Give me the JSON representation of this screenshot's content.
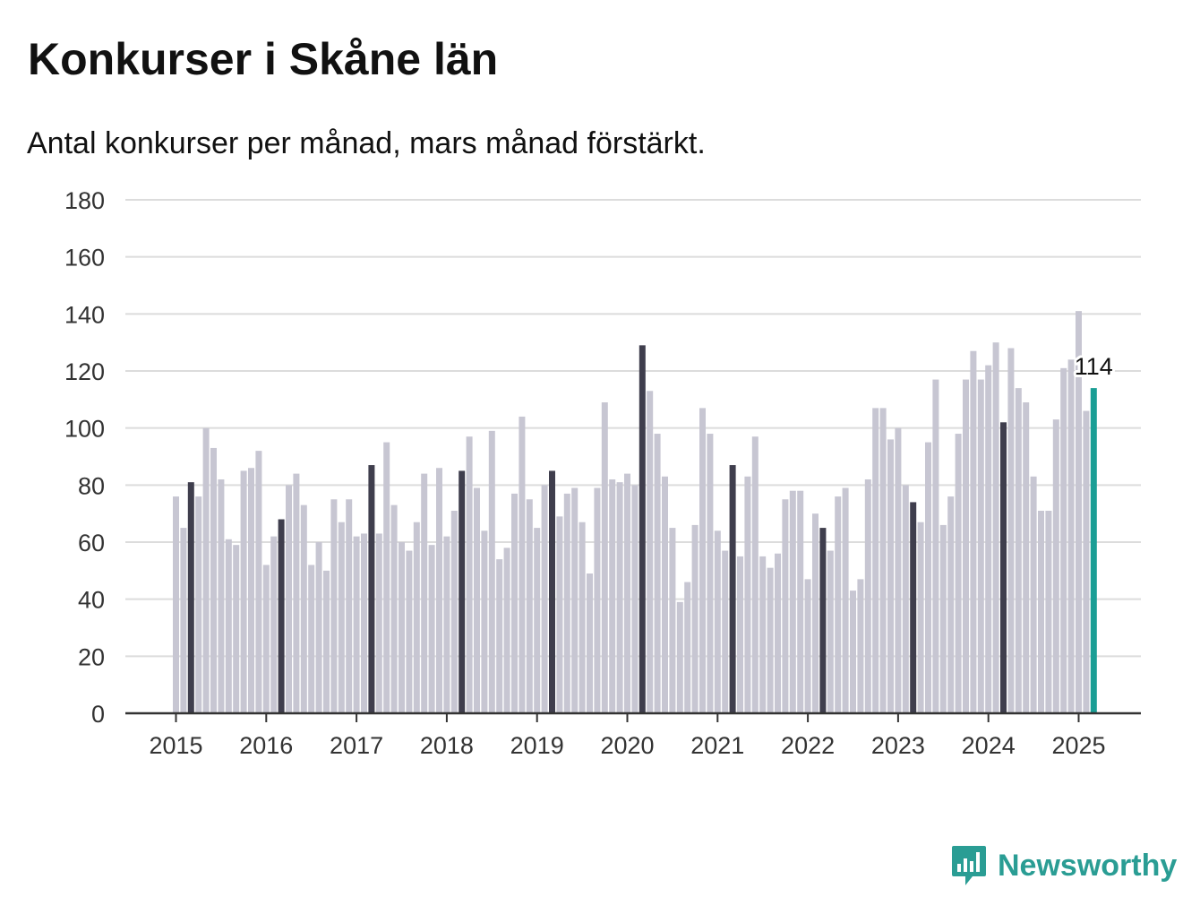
{
  "title": "Konkurser i Skåne län",
  "subtitle": "Antal konkurser per månad, mars månad förstärkt.",
  "brand": {
    "name": "Newsworthy",
    "icon": "speech-bubble-bar-chart-icon",
    "color": "#2a9d94"
  },
  "chart_data": {
    "type": "bar",
    "title": "Konkurser i Skåne län",
    "subtitle": "Antal konkurser per månad, mars månad förstärkt.",
    "start": "2015-01",
    "x_tick_labels": [
      "2015",
      "2016",
      "2017",
      "2018",
      "2019",
      "2020",
      "2021",
      "2022",
      "2023",
      "2024",
      "2025"
    ],
    "y_tick_labels": [
      "0",
      "20",
      "40",
      "60",
      "80",
      "100",
      "120",
      "140",
      "160",
      "180"
    ],
    "ylim": [
      0,
      180
    ],
    "grid": true,
    "colors": {
      "default": "#c7c6d2",
      "march": "#3f3e4d",
      "latest": "#1a9e95"
    },
    "highlight": "mars",
    "values": [
      76,
      65,
      81,
      76,
      100,
      93,
      82,
      61,
      59,
      85,
      86,
      92,
      52,
      62,
      68,
      80,
      84,
      73,
      52,
      60,
      50,
      75,
      67,
      75,
      62,
      63,
      87,
      63,
      95,
      73,
      60,
      57,
      67,
      84,
      59,
      86,
      62,
      71,
      85,
      97,
      79,
      64,
      99,
      54,
      58,
      77,
      104,
      75,
      65,
      80,
      85,
      69,
      77,
      79,
      67,
      49,
      79,
      109,
      82,
      81,
      84,
      80,
      129,
      113,
      98,
      83,
      65,
      39,
      46,
      66,
      107,
      98,
      64,
      57,
      87,
      55,
      83,
      97,
      55,
      51,
      56,
      75,
      78,
      78,
      47,
      70,
      65,
      57,
      76,
      79,
      43,
      47,
      82,
      107,
      107,
      96,
      100,
      80,
      74,
      67,
      95,
      117,
      66,
      76,
      98,
      117,
      127,
      117,
      122,
      130,
      102,
      128,
      114,
      109,
      83,
      71,
      71,
      103,
      121,
      124,
      141,
      106,
      114
    ],
    "data_labels": [
      {
        "index": 122,
        "text": "114"
      }
    ]
  }
}
